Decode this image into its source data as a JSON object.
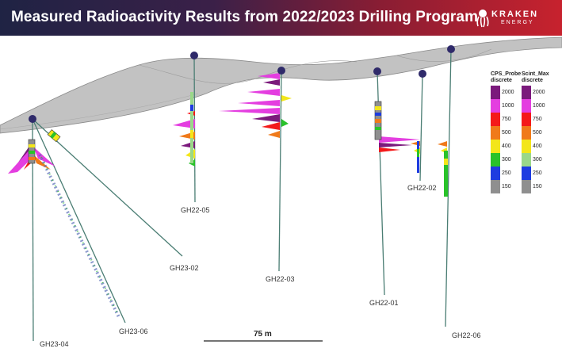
{
  "header": {
    "title": "Measured Radioactivity Results from 2022/2023 Drilling Program",
    "logo_name": "KRAKEN",
    "logo_sub": "ENERGY"
  },
  "colors": {
    "header_start": "#1f2344",
    "header_end": "#c7222e",
    "surface_fill": "#b9b9b9",
    "collar": "#2f2a6a",
    "trace": "#4a7d73"
  },
  "holes": [
    {
      "id": "GH23-04",
      "label": "GH23-04"
    },
    {
      "id": "GH23-06",
      "label": "GH23-06"
    },
    {
      "id": "GH23-02",
      "label": "GH23-02"
    },
    {
      "id": "GH22-05",
      "label": "GH22-05"
    },
    {
      "id": "GH22-03",
      "label": "GH22-03"
    },
    {
      "id": "GH22-01",
      "label": "GH22-01"
    },
    {
      "id": "GH22-02",
      "label": "GH22-02"
    },
    {
      "id": "GH22-06",
      "label": "GH22-06"
    }
  ],
  "scale_bar": {
    "label": "75 m"
  },
  "legend": {
    "cps": {
      "title": "CPS_Probe\ndiscrete",
      "colors": [
        "#7b1a7c",
        "#e43ee0",
        "#f41a1a",
        "#f07a1a",
        "#f3e61a",
        "#29c22a",
        "#1e3ce0",
        "#8f8f8f"
      ],
      "values": [
        "2000",
        "1000",
        "750",
        "500",
        "400",
        "300",
        "250",
        "150"
      ]
    },
    "scint": {
      "title": "Scint_Max\ndiscrete",
      "colors": [
        "#7b1a7c",
        "#e43ee0",
        "#f41a1a",
        "#f07a1a",
        "#f3e61a",
        "#9ad889",
        "#1e3ce0",
        "#8f8f8f"
      ],
      "values": [
        "2000",
        "1000",
        "750",
        "500",
        "400",
        "300",
        "250",
        "150"
      ]
    }
  }
}
